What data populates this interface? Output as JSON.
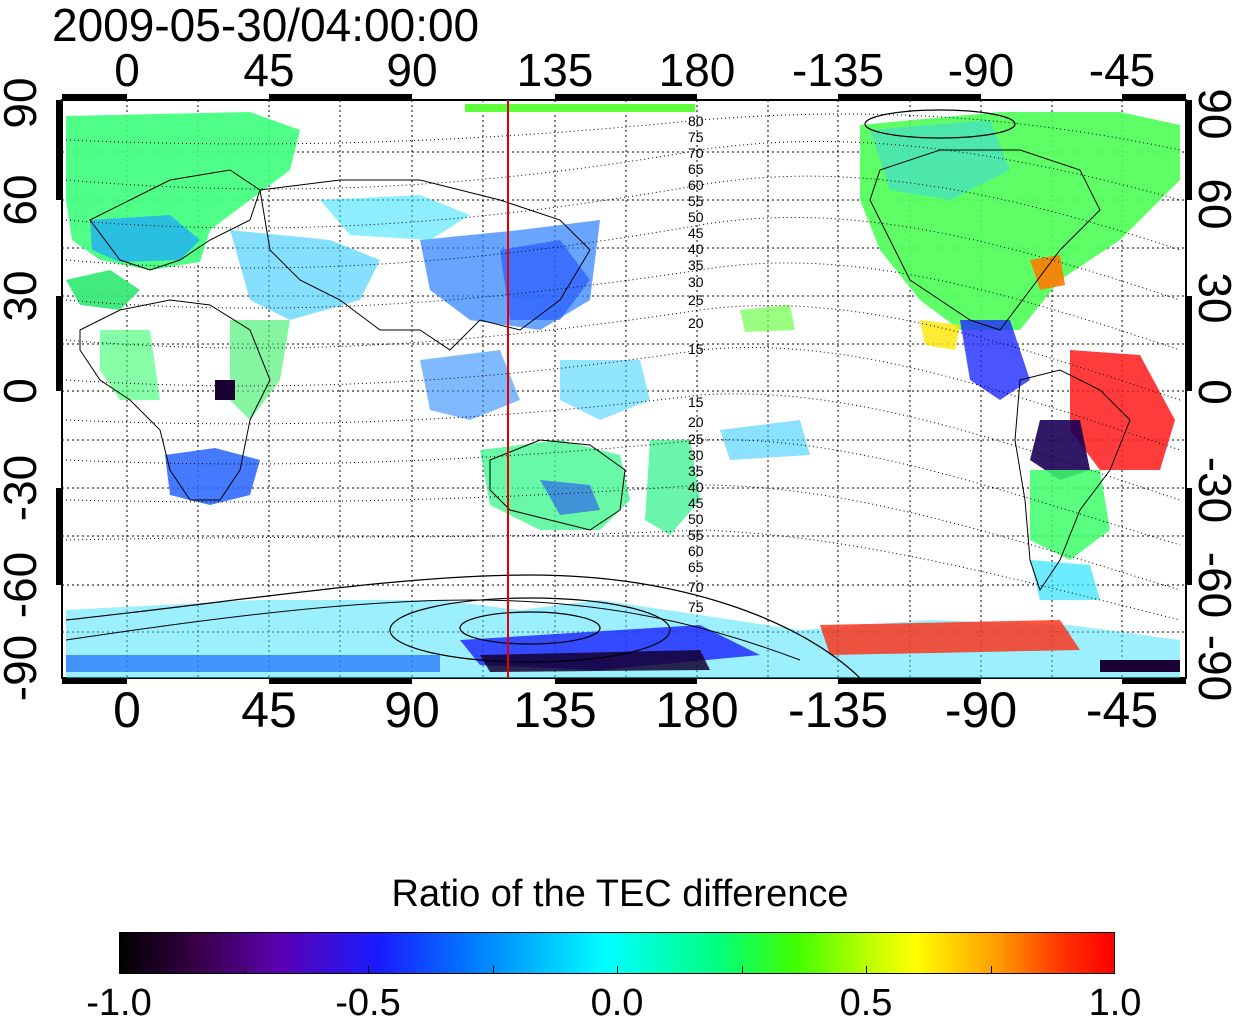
{
  "title": "2009-05-30/04:00:00",
  "map": {
    "lon_ticks_top": [
      "0",
      "45",
      "90",
      "135",
      "180",
      "-135",
      "-90",
      "-45"
    ],
    "lon_ticks_bottom": [
      "0",
      "45",
      "90",
      "135",
      "180",
      "-135",
      "-90",
      "-45"
    ],
    "lat_ticks_left": [
      "90",
      "60",
      "30",
      "0",
      "-30",
      "-60",
      "-90"
    ],
    "lat_ticks_right": [
      "90",
      "60",
      "30",
      "0",
      "-30",
      "-60",
      "-90"
    ],
    "contour_labels_north": [
      "80",
      "75",
      "70",
      "65",
      "60",
      "55",
      "50",
      "45",
      "40",
      "35",
      "30",
      "25",
      "20",
      "15"
    ],
    "contour_labels_south": [
      "15",
      "20",
      "25",
      "30",
      "35",
      "40",
      "45",
      "50",
      "55",
      "60",
      "65",
      "70",
      "75"
    ],
    "marker_line_color": "#e00000"
  },
  "colorbar": {
    "title": "Ratio of the TEC difference",
    "ticks": [
      "-1.0",
      "-0.5",
      "0.0",
      "0.5",
      "1.0"
    ],
    "range": [
      -1.0,
      1.0
    ]
  }
}
